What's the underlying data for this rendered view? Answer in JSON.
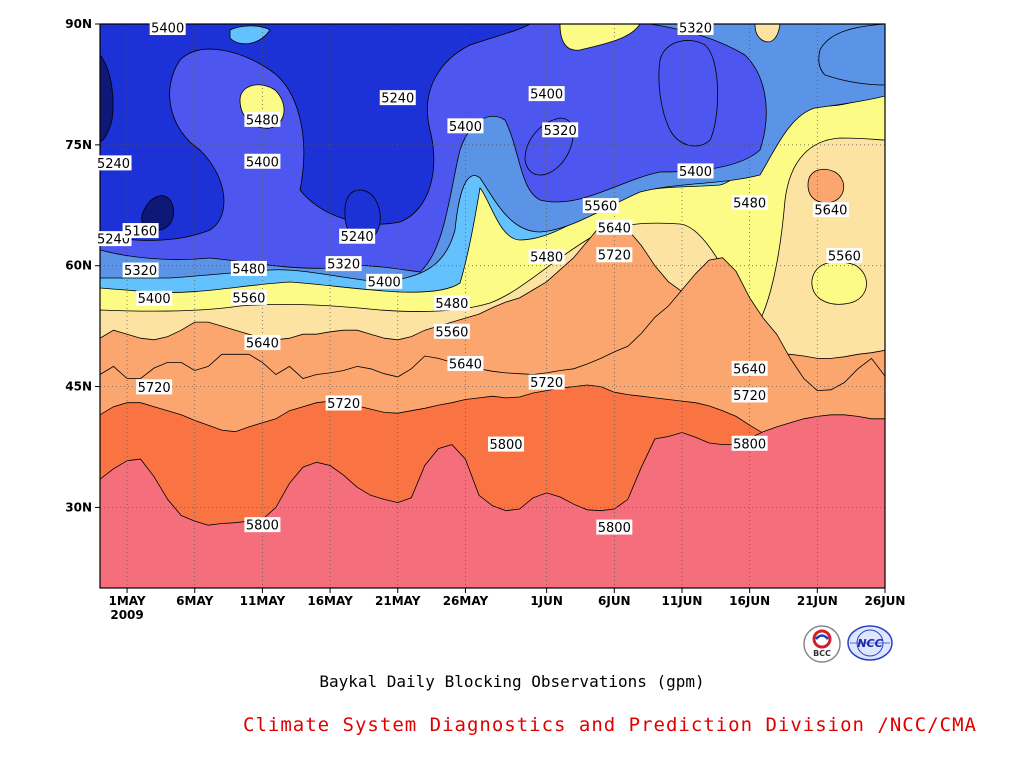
{
  "chart_data": {
    "type": "heatmap",
    "title": "Baykal Daily Blocking Observations (gpm)",
    "xlabel": "",
    "ylabel": "",
    "x_ticks": [
      {
        "date": "2009-05-01",
        "label": "1MAY",
        "sublabel": "2009"
      },
      {
        "date": "2009-05-06",
        "label": "6MAY"
      },
      {
        "date": "2009-05-11",
        "label": "11MAY"
      },
      {
        "date": "2009-05-16",
        "label": "16MAY"
      },
      {
        "date": "2009-05-21",
        "label": "21MAY"
      },
      {
        "date": "2009-05-26",
        "label": "26MAY"
      },
      {
        "date": "2009-06-01",
        "label": "1JUN"
      },
      {
        "date": "2009-06-06",
        "label": "6JUN"
      },
      {
        "date": "2009-06-11",
        "label": "11JUN"
      },
      {
        "date": "2009-06-16",
        "label": "16JUN"
      },
      {
        "date": "2009-06-21",
        "label": "21JUN"
      },
      {
        "date": "2009-06-26",
        "label": "26JUN"
      }
    ],
    "x_range": [
      "2009-04-29",
      "2009-06-26"
    ],
    "y_ticks": [
      {
        "lat": 30,
        "label": "30N"
      },
      {
        "lat": 45,
        "label": "45N"
      },
      {
        "lat": 60,
        "label": "60N"
      },
      {
        "lat": 75,
        "label": "75N"
      },
      {
        "lat": 90,
        "label": "90N"
      }
    ],
    "y_range": [
      20,
      90
    ],
    "grid": "dotted",
    "levels": [
      5160,
      5240,
      5320,
      5400,
      5480,
      5560,
      5640,
      5720,
      5800
    ],
    "fill_colors": {
      "below_5160": "#0e1877",
      "5160_5240": "#1c31d6",
      "5240_5320": "#4d56ee",
      "5320_5400": "#5b93e6",
      "5400_5480": "#63c2fd",
      "5480_5560": "#fbfb85",
      "5560_5640": "#fde3a1",
      "5640_5720": "#fba66e",
      "5720_5800": "#f97442",
      "above_5800": "#f46e7b"
    },
    "bands": [
      {
        "level": 5720,
        "lat": [
          46.5,
          47.5,
          46,
          46,
          47.3,
          48,
          48,
          47,
          47.5,
          49,
          49,
          49,
          48,
          46.5,
          47.5,
          46,
          46.5,
          46.7,
          47,
          47.5,
          47.2,
          46.6,
          46.2,
          47.2,
          48.8,
          48.5,
          48,
          47.8,
          47.2,
          46.9,
          46.7,
          46.6,
          46.5,
          46.7,
          47,
          47.2,
          47.8,
          48.5,
          49.3,
          50,
          51.6,
          53.6,
          55,
          57,
          59,
          60.7,
          61,
          59.3,
          56,
          53.5,
          51.5,
          48.5,
          46,
          44.5,
          44.6,
          45.5,
          47.2,
          48.5,
          46.3
        ]
      },
      {
        "level": 5800,
        "lat": [
          41.5,
          42.5,
          43,
          43,
          42.5,
          42,
          41.5,
          40.8,
          40.2,
          39.6,
          39.4,
          40,
          40.5,
          41,
          42,
          42.5,
          43,
          43.2,
          43,
          42.6,
          42.2,
          41.8,
          41.7,
          42,
          42.3,
          42.7,
          43,
          43.4,
          43.6,
          43.8,
          43.6,
          43.7,
          44.2,
          44.5,
          44.8,
          45,
          45.2,
          45,
          44.3,
          44,
          43.8,
          43.6,
          43.4,
          43.2,
          43,
          42.6,
          42,
          41.3,
          40.2,
          39.2,
          38.5,
          38.2,
          37.9,
          37.6,
          37.5,
          38,
          38.8,
          39.5,
          40.8
        ]
      },
      {
        "level": 9999,
        "lat": [
          33.5,
          34.8,
          35.8,
          36,
          33.8,
          31,
          29,
          28.3,
          27.8,
          28,
          28.1,
          28.3,
          28.5,
          30,
          33,
          35,
          35.6,
          35.2,
          34,
          32.5,
          31.5,
          31,
          30.6,
          31.2,
          35.2,
          37.3,
          37.8,
          36,
          31.5,
          30.2,
          29.6,
          29.8,
          31.2,
          31.8,
          31.3,
          30.4,
          29.7,
          29.6,
          29.8,
          31,
          35,
          38.5,
          38.8,
          39.3,
          38.7,
          38,
          37.8,
          37.8,
          38.6,
          39.4,
          40,
          40.5,
          41,
          41.3,
          41.5,
          41.5,
          41.3,
          41,
          41
        ]
      }
    ],
    "contour_labels": [
      {
        "text": "5400",
        "date": "2009-05-04",
        "lat": 89.5
      },
      {
        "text": "5480",
        "date": "2009-05-11",
        "lat": 78.1
      },
      {
        "text": "5400",
        "date": "2009-05-11",
        "lat": 72.9
      },
      {
        "text": "5240",
        "date": "2009-04-30",
        "lat": 72.7
      },
      {
        "text": "5240",
        "date": "2009-04-30",
        "lat": 63.3
      },
      {
        "text": "5160",
        "date": "2009-05-02",
        "lat": 64.3
      },
      {
        "text": "5320",
        "date": "2009-05-02",
        "lat": 59.4
      },
      {
        "text": "5400",
        "date": "2009-05-03",
        "lat": 55.9
      },
      {
        "text": "5480",
        "date": "2009-05-10",
        "lat": 59.6
      },
      {
        "text": "5560",
        "date": "2009-05-10",
        "lat": 56.0
      },
      {
        "text": "5640",
        "date": "2009-05-11",
        "lat": 50.4
      },
      {
        "text": "5720",
        "date": "2009-05-03",
        "lat": 44.9
      },
      {
        "text": "5720",
        "date": "2009-05-17",
        "lat": 42.9
      },
      {
        "text": "5800",
        "date": "2009-05-11",
        "lat": 27.8
      },
      {
        "text": "5240",
        "date": "2009-05-21",
        "lat": 80.8
      },
      {
        "text": "5240",
        "date": "2009-05-18",
        "lat": 63.6
      },
      {
        "text": "5320",
        "date": "2009-05-17",
        "lat": 60.2
      },
      {
        "text": "5400",
        "date": "2009-05-20",
        "lat": 58.0
      },
      {
        "text": "5480",
        "date": "2009-05-25",
        "lat": 55.3
      },
      {
        "text": "5560",
        "date": "2009-05-25",
        "lat": 51.8
      },
      {
        "text": "5640",
        "date": "2009-05-26",
        "lat": 47.8
      },
      {
        "text": "5400",
        "date": "2009-05-26",
        "lat": 77.3
      },
      {
        "text": "5720",
        "date": "2009-06-01",
        "lat": 45.5
      },
      {
        "text": "5800",
        "date": "2009-05-29",
        "lat": 37.8
      },
      {
        "text": "5480",
        "date": "2009-06-01",
        "lat": 61.1
      },
      {
        "text": "5400",
        "date": "2009-06-01",
        "lat": 81.3
      },
      {
        "text": "5320",
        "date": "2009-06-02",
        "lat": 76.8
      },
      {
        "text": "5560",
        "date": "2009-06-05",
        "lat": 67.4
      },
      {
        "text": "5640",
        "date": "2009-06-06",
        "lat": 64.7
      },
      {
        "text": "5720",
        "date": "2009-06-06",
        "lat": 61.3
      },
      {
        "text": "5800",
        "date": "2009-06-06",
        "lat": 27.5
      },
      {
        "text": "5320",
        "date": "2009-06-12",
        "lat": 89.5
      },
      {
        "text": "5400",
        "date": "2009-06-12",
        "lat": 71.7
      },
      {
        "text": "5480",
        "date": "2009-06-16",
        "lat": 67.8
      },
      {
        "text": "5640",
        "date": "2009-06-16",
        "lat": 47.2
      },
      {
        "text": "5720",
        "date": "2009-06-16",
        "lat": 43.9
      },
      {
        "text": "5800",
        "date": "2009-06-16",
        "lat": 37.9
      },
      {
        "text": "5640",
        "date": "2009-06-22",
        "lat": 66.9
      },
      {
        "text": "5560",
        "date": "2009-06-23",
        "lat": 61.2
      }
    ]
  },
  "footer": {
    "credit": "Climate System Diagnostics and Prediction Division /NCC/CMA",
    "logo_left_text": "BCC",
    "logo_right_text": "NCC"
  }
}
